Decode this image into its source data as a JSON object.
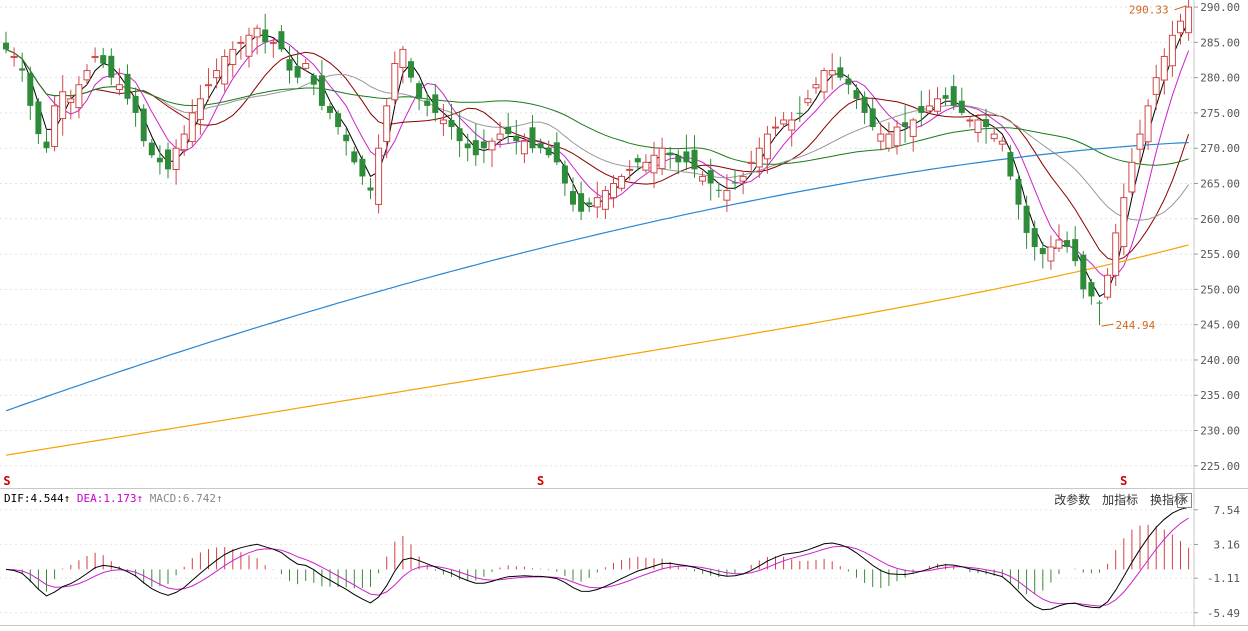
{
  "chart_data": [
    {
      "type": "candlestick",
      "ylim": [
        222,
        291
      ],
      "y_ticks": [
        "290.00",
        "285.00",
        "280.00",
        "275.00",
        "270.00",
        "265.00",
        "260.00",
        "255.00",
        "250.00",
        "245.00",
        "240.00",
        "235.00",
        "230.00",
        "225.00"
      ],
      "y_tick_values": [
        290,
        285,
        280,
        275,
        270,
        265,
        260,
        255,
        250,
        245,
        240,
        235,
        230,
        225
      ],
      "annotations": {
        "high": "290.33",
        "high_value": 290.33,
        "low": "244.94",
        "low_value": 244.94
      },
      "markers": [
        "S",
        "S",
        "S"
      ],
      "closes": [
        284,
        283,
        281,
        276,
        272,
        270,
        276,
        278,
        277,
        279,
        281,
        283,
        282,
        280,
        279,
        277,
        275,
        271,
        269,
        268,
        267,
        270,
        272,
        275,
        277,
        279,
        281,
        283,
        284,
        285,
        286,
        287,
        285,
        285,
        284,
        281,
        280,
        282,
        279,
        276,
        275,
        273,
        271,
        268,
        266,
        264,
        270,
        276,
        282,
        284,
        280,
        277,
        276,
        275,
        274,
        273,
        271,
        270,
        269,
        270,
        271,
        272,
        272,
        271,
        271,
        270,
        270,
        269,
        268,
        265,
        262,
        261,
        262,
        263,
        264,
        265,
        266,
        267,
        268,
        268,
        269,
        270,
        269,
        268,
        268,
        267,
        266,
        265,
        264,
        264,
        265,
        266,
        268,
        270,
        272,
        273,
        274,
        274,
        275,
        277,
        279,
        281,
        281,
        280,
        279,
        277,
        275,
        273,
        272,
        272,
        273,
        273,
        274,
        275,
        276,
        277,
        277,
        276,
        275,
        274,
        274,
        273,
        272,
        271,
        266,
        262,
        258,
        256,
        255,
        256,
        257,
        256,
        254,
        250,
        249,
        248,
        252,
        258,
        263,
        268,
        272,
        276,
        280,
        283,
        286,
        288,
        290
      ],
      "series": [
        {
          "color": "#000000"
        },
        {
          "color": "#cc22cc"
        },
        {
          "color": "#8b0000"
        },
        {
          "color": "#999999"
        },
        {
          "color": "#1a7a1a"
        },
        {
          "color": "#2a86d1"
        },
        {
          "color": "#f5a300"
        }
      ]
    },
    {
      "type": "macd",
      "ylim": [
        -6.4,
        8.4
      ],
      "y_ticks": [
        "7.54",
        "3.16",
        "-1.11",
        "-5.49"
      ],
      "y_tick_values": [
        7.54,
        3.16,
        -1.11,
        -5.49
      ],
      "indicator_labels": [
        {
          "text": "DIF:4.544",
          "color": "#000000",
          "arrow": "↑"
        },
        {
          "text": "DEA:1.173",
          "color": "#cc00cc",
          "arrow": "↑"
        },
        {
          "text": "MACD:6.742",
          "color": "#888888",
          "arrow": "↑"
        }
      ],
      "dif_color": "#000000",
      "dea_color": "#cc22cc",
      "hist_up_color": "#d44040",
      "hist_down_color": "#3a8a3a"
    }
  ],
  "toolbar": {
    "change_params": "改参数",
    "add_indicator": "加指标",
    "switch_indicator": "换指标",
    "close": "✕"
  }
}
